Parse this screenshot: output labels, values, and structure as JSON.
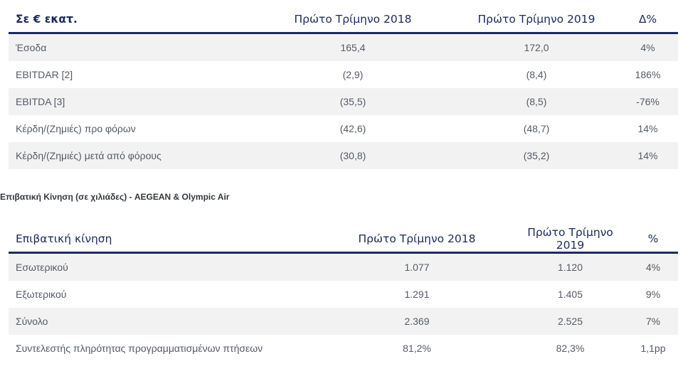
{
  "table1": {
    "headers": [
      "Σε € εκατ.",
      "Πρώτο Τρίμηνο 2018",
      "Πρώτο Τρίμηνο 2019",
      "Δ%"
    ],
    "rows": [
      [
        "Έσοδα",
        "165,4",
        "172,0",
        "4%"
      ],
      [
        "EBITDAR [2]",
        "(2,9)",
        "(8,4)",
        "186%"
      ],
      [
        "EBITDA [3]",
        "(35,5)",
        "(8,5)",
        "-76%"
      ],
      [
        "Κέρδη/(Ζημιές) προ φόρων",
        "(42,6)",
        "(48,7)",
        "14%"
      ],
      [
        "Κέρδη/(Ζημιές) μετά από φόρους",
        "(30,8)",
        "(35,2)",
        "14%"
      ]
    ]
  },
  "section2_title": "Επιβατική Κίνηση (σε χιλιάδες) - AEGEAN & Olympic Air",
  "table2": {
    "headers": [
      "Επιβατική κίνηση",
      "Πρώτο Τρίμηνο 2018",
      "Πρώτο Τρίμηνο 2019",
      "%"
    ],
    "rows": [
      [
        "Εσωτερικού",
        "1.077",
        "1.120",
        "4%"
      ],
      [
        "Εξωτερικού",
        "1.291",
        "1.405",
        "9%"
      ],
      [
        "Σύνολο",
        "2.369",
        "2.525",
        "7%"
      ],
      [
        "Συντελεστής πληρότητας προγραμματισμένων πτήσεων",
        "81,2%",
        "82,3%",
        "1,1pp"
      ]
    ]
  },
  "colors": {
    "header_text": "#1b2a5e",
    "header_rule": "#1c2b5e",
    "body_text": "#555a66",
    "stripe": "#f2f2f2"
  }
}
